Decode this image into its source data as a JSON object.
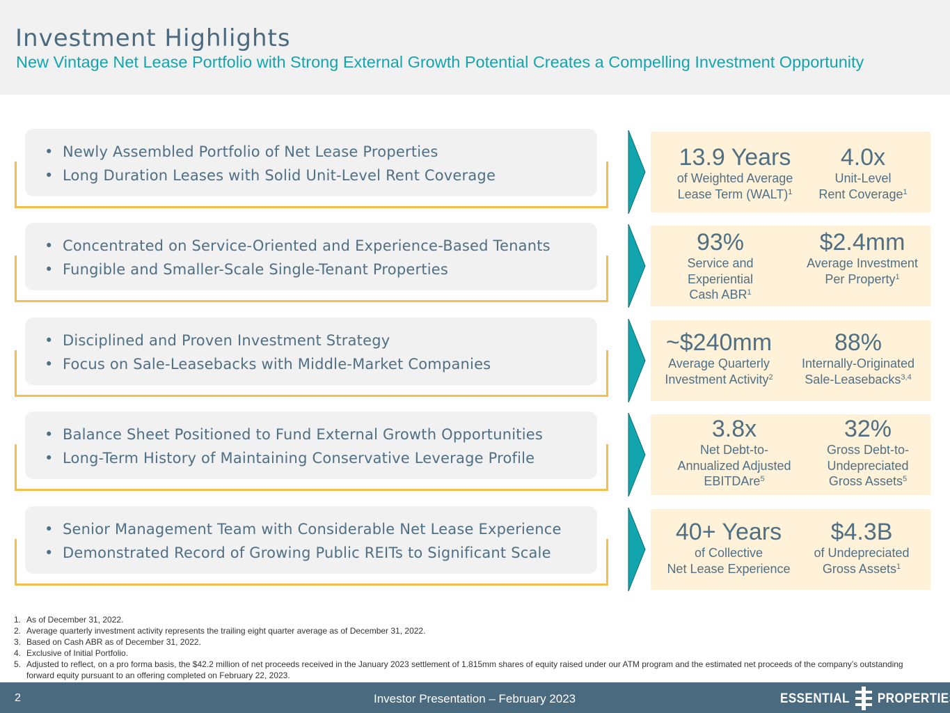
{
  "header": {
    "title": "Investment Highlights",
    "subtitle": "New Vintage Net Lease Portfolio with Strong External Growth Potential Creates a Compelling Investment Opportunity"
  },
  "colors": {
    "title": "#4a6a80",
    "subtitle": "#12a5ad",
    "bracket": "#f4be49",
    "arrow": "#12a5ad",
    "statbox": "#fff2d9",
    "footer": "#4a6a80"
  },
  "rows": [
    {
      "bullets": [
        "Newly Assembled Portfolio of Net Lease Properties",
        "Long Duration Leases with Solid Unit-Level Rent Coverage"
      ],
      "stats": [
        {
          "value": "13.9 Years",
          "lines": [
            "of Weighted Average",
            "Lease Term (WALT)"
          ],
          "sup": "1"
        },
        {
          "value": "4.0x",
          "lines": [
            "Unit-Level",
            "Rent Coverage"
          ],
          "sup": "1"
        }
      ]
    },
    {
      "bullets": [
        "Concentrated on Service-Oriented and Experience-Based Tenants",
        "Fungible and Smaller-Scale Single-Tenant Properties"
      ],
      "stats": [
        {
          "value": "93%",
          "lines": [
            "Service and",
            "Experiential",
            "Cash ABR"
          ],
          "sup": "1"
        },
        {
          "value": "$2.4mm",
          "lines": [
            "Average Investment",
            "Per Property"
          ],
          "sup": "1"
        }
      ]
    },
    {
      "bullets": [
        "Disciplined and Proven Investment Strategy",
        "Focus on Sale-Leasebacks with Middle-Market Companies"
      ],
      "stats": [
        {
          "value": "~$240mm",
          "lines": [
            "Average Quarterly",
            "Investment Activity"
          ],
          "sup": "2"
        },
        {
          "value": "88%",
          "lines": [
            "Internally-Originated",
            "Sale-Leasebacks"
          ],
          "sup": "3,4"
        }
      ]
    },
    {
      "bullets": [
        "Balance Sheet Positioned to Fund External Growth Opportunities",
        "Long-Term History of Maintaining Conservative Leverage Profile"
      ],
      "stats": [
        {
          "value": "3.8x",
          "lines": [
            "Net Debt-to-",
            "Annualized Adjusted",
            "EBITDAre"
          ],
          "sup": "5"
        },
        {
          "value": "32%",
          "lines": [
            "Gross Debt-to-",
            "Undepreciated",
            "Gross Assets"
          ],
          "sup": "5"
        }
      ]
    },
    {
      "bullets": [
        "Senior Management Team with Considerable Net Lease Experience",
        "Demonstrated Record of Growing Public REITs to Significant Scale"
      ],
      "stats": [
        {
          "value": "40+ Years",
          "lines": [
            "of Collective",
            "Net Lease Experience"
          ],
          "sup": ""
        },
        {
          "value": "$4.3B",
          "lines": [
            "of Undepreciated",
            "Gross Assets"
          ],
          "sup": "1"
        }
      ]
    }
  ],
  "footnotes": [
    {
      "n": "1.",
      "text": "As of December 31, 2022."
    },
    {
      "n": "2.",
      "text": "Average quarterly investment activity represents the trailing eight quarter average as of December 31, 2022."
    },
    {
      "n": "3.",
      "text": "Based on Cash ABR as of December 31, 2022."
    },
    {
      "n": "4.",
      "text": "Exclusive of Initial Portfolio."
    },
    {
      "n": "5.",
      "text": "Adjusted to reflect, on a pro forma basis, the $42.2 million of net proceeds received in the January 2023 settlement of 1.815mm shares of equity raised under our ATM program and the estimated net proceeds of the company’s outstanding forward equity pursuant to an offering completed on February 22, 2023."
    }
  ],
  "footer": {
    "page_number": "2",
    "text": "Investor Presentation – February 2023",
    "logo_left": "ESSENTIAL",
    "logo_right": "PROPERTIES",
    "logo_icon": "essential-properties-mark"
  }
}
